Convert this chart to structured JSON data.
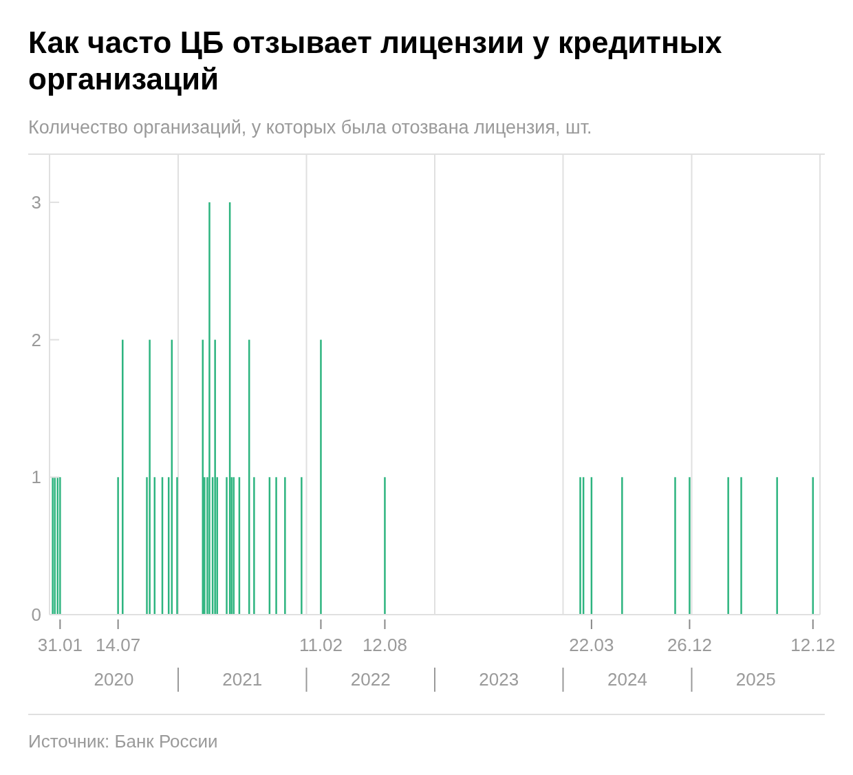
{
  "chart_data": {
    "type": "bar",
    "title": "Как часто ЦБ отзывает лицензии у кредитных организаций",
    "subtitle": "Количество организаций, у которых была отозвана лицензия, шт.",
    "x": [
      "2020-01-10",
      "2020-01-16",
      "2020-01-24",
      "2020-01-31",
      "2020-07-14",
      "2020-07-27",
      "2020-10-04",
      "2020-10-12",
      "2020-10-26",
      "2020-11-17",
      "2020-12-05",
      "2020-12-14",
      "2020-12-29",
      "2021-03-12",
      "2021-03-17",
      "2021-03-25",
      "2021-03-31",
      "2021-04-09",
      "2021-04-16",
      "2021-04-22",
      "2021-05-19",
      "2021-05-28",
      "2021-06-02",
      "2021-06-08",
      "2021-06-24",
      "2021-07-22",
      "2021-08-05",
      "2021-09-18",
      "2021-10-07",
      "2021-11-01",
      "2021-12-18",
      "2022-02-11",
      "2022-08-12",
      "2024-02-19",
      "2024-02-28",
      "2024-03-22",
      "2024-06-17",
      "2024-11-15",
      "2024-12-26",
      "2025-04-15",
      "2025-05-22",
      "2025-09-01",
      "2025-12-12"
    ],
    "values": [
      1,
      1,
      1,
      1,
      1,
      2,
      1,
      2,
      1,
      1,
      1,
      2,
      1,
      2,
      1,
      1,
      3,
      1,
      2,
      1,
      1,
      3,
      1,
      1,
      1,
      2,
      1,
      1,
      1,
      1,
      1,
      2,
      1,
      1,
      1,
      1,
      1,
      1,
      1,
      1,
      1,
      1,
      1
    ],
    "color": "#2db47f",
    "xlim": [
      "2020-01-01",
      "2026-01-01"
    ],
    "xticks": [
      {
        "value": "2020-01-31",
        "label": "31.01"
      },
      {
        "value": "2020-07-14",
        "label": "14.07"
      },
      {
        "value": "2022-02-11",
        "label": "11.02"
      },
      {
        "value": "2022-08-12",
        "label": "12.08"
      },
      {
        "value": "2024-03-22",
        "label": "22.03"
      },
      {
        "value": "2024-12-26",
        "label": "26.12"
      },
      {
        "value": "2025-12-12",
        "label": "12.12"
      },
      {
        "value": "2021-01-01",
        "label": null
      },
      {
        "value": "2022-01-01",
        "label": null
      },
      {
        "value": "2023-01-01",
        "label": null
      },
      {
        "value": "2024-01-01",
        "label": null
      },
      {
        "value": "2025-01-01",
        "label": null
      }
    ],
    "ylim": [
      0,
      3.35
    ],
    "yticks": [
      0,
      1,
      2,
      3
    ],
    "grid": "x",
    "annotations": [
      "2020",
      "2021",
      "2022",
      "2023",
      "2024",
      "2025",
      "Источник: Банк России"
    ]
  }
}
